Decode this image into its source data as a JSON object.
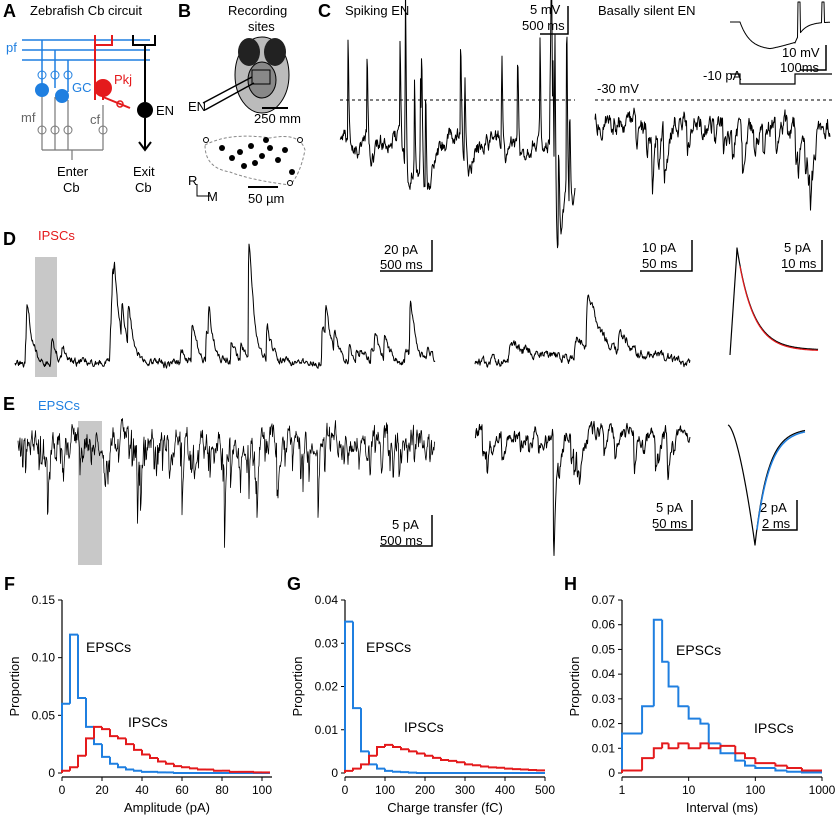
{
  "figure": {
    "a": {
      "letter": "A",
      "title": "Zebrafish Cb circuit",
      "pf": "pf",
      "gc": "GC",
      "pkj": "Pkj",
      "en": "EN",
      "mf": "mf",
      "cf": "cf",
      "enter": "Enter",
      "enter_cb": "Cb",
      "exit": "Exit",
      "exit_cb": "Cb"
    },
    "b": {
      "letter": "B",
      "title_1": "Recording",
      "title_2": "sites",
      "en": "EN",
      "scale_1": "250 mm",
      "r": "R",
      "m": "M",
      "scale_2": "50 µm"
    },
    "c": {
      "letter": "C",
      "left_title": "Spiking EN",
      "left_scale_v": "5 mV",
      "left_scale_t": "500 ms",
      "right_title": "Basally silent EN",
      "inset_scale_v": "10 mV",
      "inset_scale_t": "100ms",
      "current": "-10 pA",
      "potential": "-30 mV"
    },
    "d": {
      "letter": "D",
      "label": "IPSCs",
      "scale_1_i": "20 pA",
      "scale_1_t": "500 ms",
      "scale_2_i": "10 pA",
      "scale_2_t": "50 ms",
      "scale_3_i": "5 pA",
      "scale_3_t": "10 ms"
    },
    "e": {
      "letter": "E",
      "label": "EPSCs",
      "scale_1_i": "5 pA",
      "scale_1_t": "500 ms",
      "scale_2_i": "5 pA",
      "scale_2_t": "50 ms",
      "scale_3_i": "2 pA",
      "scale_3_t": "2 ms"
    }
  },
  "chart_data": [
    {
      "type": "histogram",
      "panel": "F",
      "x_label": "Amplitude (pA)",
      "y_label": "Proportion",
      "bins": [
        0,
        4,
        8,
        12,
        16,
        20,
        24,
        28,
        32,
        36,
        40,
        44,
        48,
        52,
        56,
        60,
        64,
        68,
        72,
        76,
        80,
        84,
        88,
        92,
        96,
        100,
        104
      ],
      "series": [
        {
          "name": "EPSCs",
          "color": "#1f7fe0",
          "values": [
            0.06,
            0.12,
            0.065,
            0.04,
            0.025,
            0.014,
            0.008,
            0.005,
            0.003,
            0.002,
            0.001,
            0.001,
            0.0005,
            0.0005,
            0,
            0,
            0,
            0,
            0,
            0,
            0,
            0,
            0,
            0,
            0,
            0
          ]
        },
        {
          "name": "IPSCs",
          "color": "#e41a1c",
          "values": [
            0.002,
            0.005,
            0.015,
            0.03,
            0.04,
            0.038,
            0.032,
            0.03,
            0.025,
            0.02,
            0.016,
            0.013,
            0.01,
            0.008,
            0.006,
            0.005,
            0.004,
            0.003,
            0.003,
            0.002,
            0.002,
            0.001,
            0.001,
            0.001,
            0.0005,
            0.0005
          ]
        }
      ],
      "xlim": [
        0,
        105
      ],
      "ylim": [
        0,
        0.15
      ],
      "xticks": [
        0,
        20,
        40,
        60,
        80,
        100
      ],
      "yticks": [
        0,
        0.05,
        {
          "value": 0.1,
          "label": "0.10"
        },
        0.15
      ]
    },
    {
      "type": "histogram",
      "panel": "G",
      "x_label": "Charge transfer (fC)",
      "y_label": "Proportion",
      "bins": [
        0,
        20,
        40,
        60,
        80,
        100,
        120,
        140,
        160,
        180,
        200,
        220,
        240,
        260,
        280,
        300,
        320,
        340,
        360,
        380,
        400,
        420,
        440,
        460,
        480,
        500
      ],
      "series": [
        {
          "name": "EPSCs",
          "color": "#1f7fe0",
          "values": [
            0.035,
            0.015,
            0.005,
            0.002,
            0.001,
            0.0005,
            0.0003,
            0.0002,
            0.0001,
            0,
            0,
            0,
            0,
            0,
            0,
            0,
            0,
            0,
            0,
            0,
            0,
            0,
            0,
            0,
            0
          ]
        },
        {
          "name": "IPSCs",
          "color": "#e41a1c",
          "values": [
            0.0005,
            0.001,
            0.002,
            0.004,
            0.006,
            0.0065,
            0.006,
            0.0055,
            0.005,
            0.0045,
            0.004,
            0.0035,
            0.003,
            0.0028,
            0.0025,
            0.002,
            0.0018,
            0.0015,
            0.0013,
            0.0012,
            0.001,
            0.0009,
            0.0008,
            0.0007,
            0.0006
          ]
        }
      ],
      "xlim": [
        0,
        500
      ],
      "ylim": [
        0,
        0.04
      ],
      "xticks": [
        0,
        100,
        200,
        300,
        400,
        500
      ],
      "yticks": [
        0,
        0.01,
        0.02,
        0.03,
        0.04
      ]
    },
    {
      "type": "histogram",
      "panel": "H",
      "x_label": "Interval (ms)",
      "y_label": "Proportion",
      "xscale": "log",
      "bins": [
        1,
        2,
        3,
        4,
        5,
        7,
        10,
        15,
        20,
        30,
        50,
        70,
        100,
        200,
        300,
        500,
        1000
      ],
      "series": [
        {
          "name": "EPSCs",
          "color": "#1f7fe0",
          "values": [
            0.016,
            0.027,
            0.062,
            0.045,
            0.035,
            0.027,
            0.022,
            0.02,
            0.012,
            0.008,
            0.005,
            0.003,
            0.002,
            0.001,
            0.0005,
            0.0002
          ]
        },
        {
          "name": "IPSCs",
          "color": "#e41a1c",
          "values": [
            0.001,
            0.006,
            0.01,
            0.012,
            0.01,
            0.012,
            0.01,
            0.012,
            0.01,
            0.011,
            0.008,
            0.006,
            0.004,
            0.003,
            0.002,
            0.001
          ]
        }
      ],
      "xlim": [
        1,
        1000
      ],
      "ylim": [
        0,
        0.07
      ],
      "xticks": [
        1,
        10,
        100,
        1000
      ],
      "yticks": [
        0,
        0.01,
        0.02,
        0.03,
        0.04,
        0.05,
        0.06,
        0.07
      ]
    }
  ]
}
